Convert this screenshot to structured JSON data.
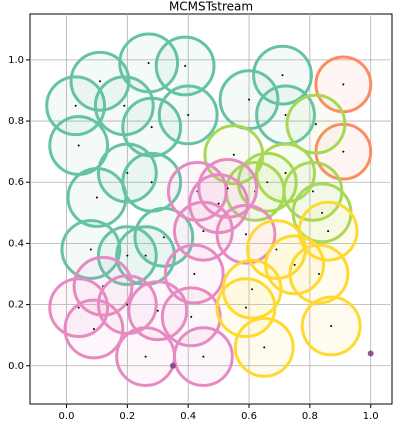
{
  "chart_data": {
    "type": "scatter",
    "title": "MCMSTstream",
    "xlim": [
      -0.12,
      1.07
    ],
    "ylim": [
      -0.125,
      1.15
    ],
    "xticks": [
      {
        "value": 0,
        "label": "0.0"
      },
      0.2,
      0.4,
      0.6,
      0.8,
      {
        "value": 1,
        "label": "1.0"
      }
    ],
    "yticks": [
      {
        "value": 0,
        "label": "0.0"
      },
      0.2,
      0.4,
      0.6,
      0.8,
      {
        "value": 1,
        "label": "1.0"
      }
    ],
    "grid": true,
    "series": [
      {
        "color": "#66c2a5",
        "x": [
          0.27,
          0.39,
          0.11,
          0.03,
          0.19,
          0.04,
          0.28,
          0.4,
          0.2,
          0.1,
          0.28,
          0.32,
          0.2,
          0.08,
          0.26,
          0.6,
          0.71,
          0.72
        ],
        "y": [
          0.99,
          0.98,
          0.93,
          0.85,
          0.85,
          0.72,
          0.78,
          0.82,
          0.63,
          0.55,
          0.6,
          0.42,
          0.36,
          0.38,
          0.36,
          0.87,
          0.95,
          0.82
        ],
        "r": [
          0.095,
          0.095,
          0.095,
          0.095,
          0.095,
          0.095,
          0.095,
          0.095,
          0.095,
          0.095,
          0.095,
          0.095,
          0.095,
          0.095,
          0.095,
          0.095,
          0.095,
          0.095
        ]
      },
      {
        "color": "#fc8d62",
        "x": [
          0.91,
          0.91
        ],
        "y": [
          0.92,
          0.7
        ],
        "r": [
          0.09,
          0.09
        ]
      },
      {
        "color": "#a6d854",
        "x": [
          0.55,
          0.82,
          0.66,
          0.72,
          0.81,
          0.84,
          0.62
        ],
        "y": [
          0.69,
          0.79,
          0.6,
          0.63,
          0.57,
          0.5,
          0.57
        ],
        "r": [
          0.095,
          0.095,
          0.095,
          0.095,
          0.095,
          0.095,
          0.095
        ]
      },
      {
        "color": "#e78ac3",
        "x": [
          0.43,
          0.53,
          0.45,
          0.5,
          0.42,
          0.12,
          0.04,
          0.09,
          0.2,
          0.3,
          0.41,
          0.26,
          0.45,
          0.59
        ],
        "y": [
          0.57,
          0.58,
          0.44,
          0.53,
          0.3,
          0.26,
          0.19,
          0.12,
          0.2,
          0.18,
          0.16,
          0.03,
          0.03,
          0.43
        ],
        "r": [
          0.095,
          0.095,
          0.095,
          0.095,
          0.095,
          0.095,
          0.095,
          0.095,
          0.095,
          0.095,
          0.095,
          0.095,
          0.095,
          0.095
        ]
      },
      {
        "color": "#ffd92f",
        "x": [
          0.69,
          0.61,
          0.83,
          0.86,
          0.59,
          0.65,
          0.87,
          0.75
        ],
        "y": [
          0.38,
          0.25,
          0.3,
          0.44,
          0.19,
          0.06,
          0.13,
          0.33
        ],
        "r": [
          0.095,
          0.095,
          0.095,
          0.095,
          0.095,
          0.095,
          0.095,
          0.095
        ]
      },
      {
        "color": "#7b3f7f",
        "x": [
          0.35,
          1.0
        ],
        "y": [
          0.0,
          0.04
        ]
      }
    ]
  }
}
